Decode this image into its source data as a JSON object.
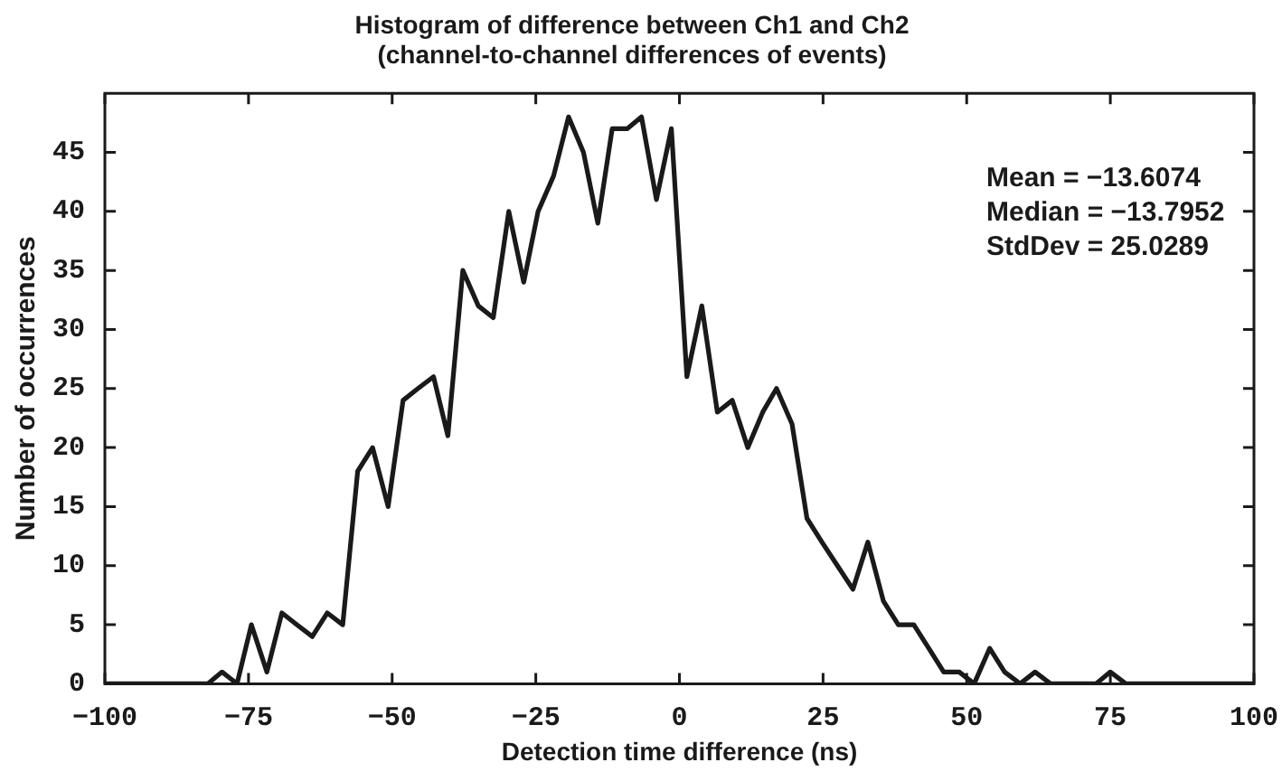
{
  "chart_data": {
    "type": "line",
    "title": "Histogram of difference between Ch1 and Ch2",
    "subtitle": "(channel-to-channel differences of events)",
    "xlabel": "Detection time difference (ns)",
    "ylabel": "Number of occurrences",
    "x": [
      -100,
      -82.1,
      -79.6,
      -77,
      -74.5,
      -71.8,
      -69.2,
      -66.6,
      -63.9,
      -61.3,
      -58.6,
      -56,
      -53.4,
      -50.7,
      -48.1,
      -45.5,
      -42.8,
      -40.3,
      -37.7,
      -35,
      -32.4,
      -29.7,
      -27.1,
      -24.6,
      -21.9,
      -19.3,
      -16.7,
      -14.2,
      -11.7,
      -9.1,
      -6.6,
      -4,
      -1.4,
      1.3,
      3.9,
      6.6,
      9.2,
      11.9,
      14.5,
      16.9,
      19.6,
      22.2,
      24.8,
      27.5,
      30.2,
      32.8,
      35.5,
      38.1,
      40.8,
      43.4,
      46,
      48.7,
      51.3,
      54,
      56.6,
      59.3,
      61.9,
      64.6,
      72.5,
      75,
      77.7,
      100
    ],
    "series": [
      {
        "color": "#1a1a1a",
        "values": [
          0,
          0,
          1,
          0,
          5,
          1,
          6,
          5,
          4,
          6,
          5,
          18,
          20,
          15,
          24,
          25,
          26,
          21,
          35,
          32,
          31,
          40,
          34,
          40,
          43,
          48,
          45,
          39,
          47,
          47,
          48,
          41,
          47,
          26,
          32,
          23,
          24,
          20,
          23,
          25,
          22,
          14,
          12,
          10,
          8,
          12,
          7,
          5,
          5,
          3,
          1,
          1,
          0,
          3,
          1,
          0,
          1,
          0,
          0,
          1,
          0,
          0
        ]
      }
    ],
    "xlim": [
      -100,
      100
    ],
    "ylim": [
      0,
      50
    ],
    "xticks": [
      -100,
      -75,
      -50,
      -25,
      0,
      25,
      50,
      75,
      100
    ],
    "yticks": [
      0,
      5,
      10,
      15,
      20,
      25,
      30,
      35,
      40,
      45
    ],
    "grid": false,
    "legend": false,
    "marker": "none",
    "line_style": "solid",
    "annotations": [
      "Mean = −13.6074",
      "Median = −13.7952",
      "StdDev = 25.0289"
    ]
  }
}
